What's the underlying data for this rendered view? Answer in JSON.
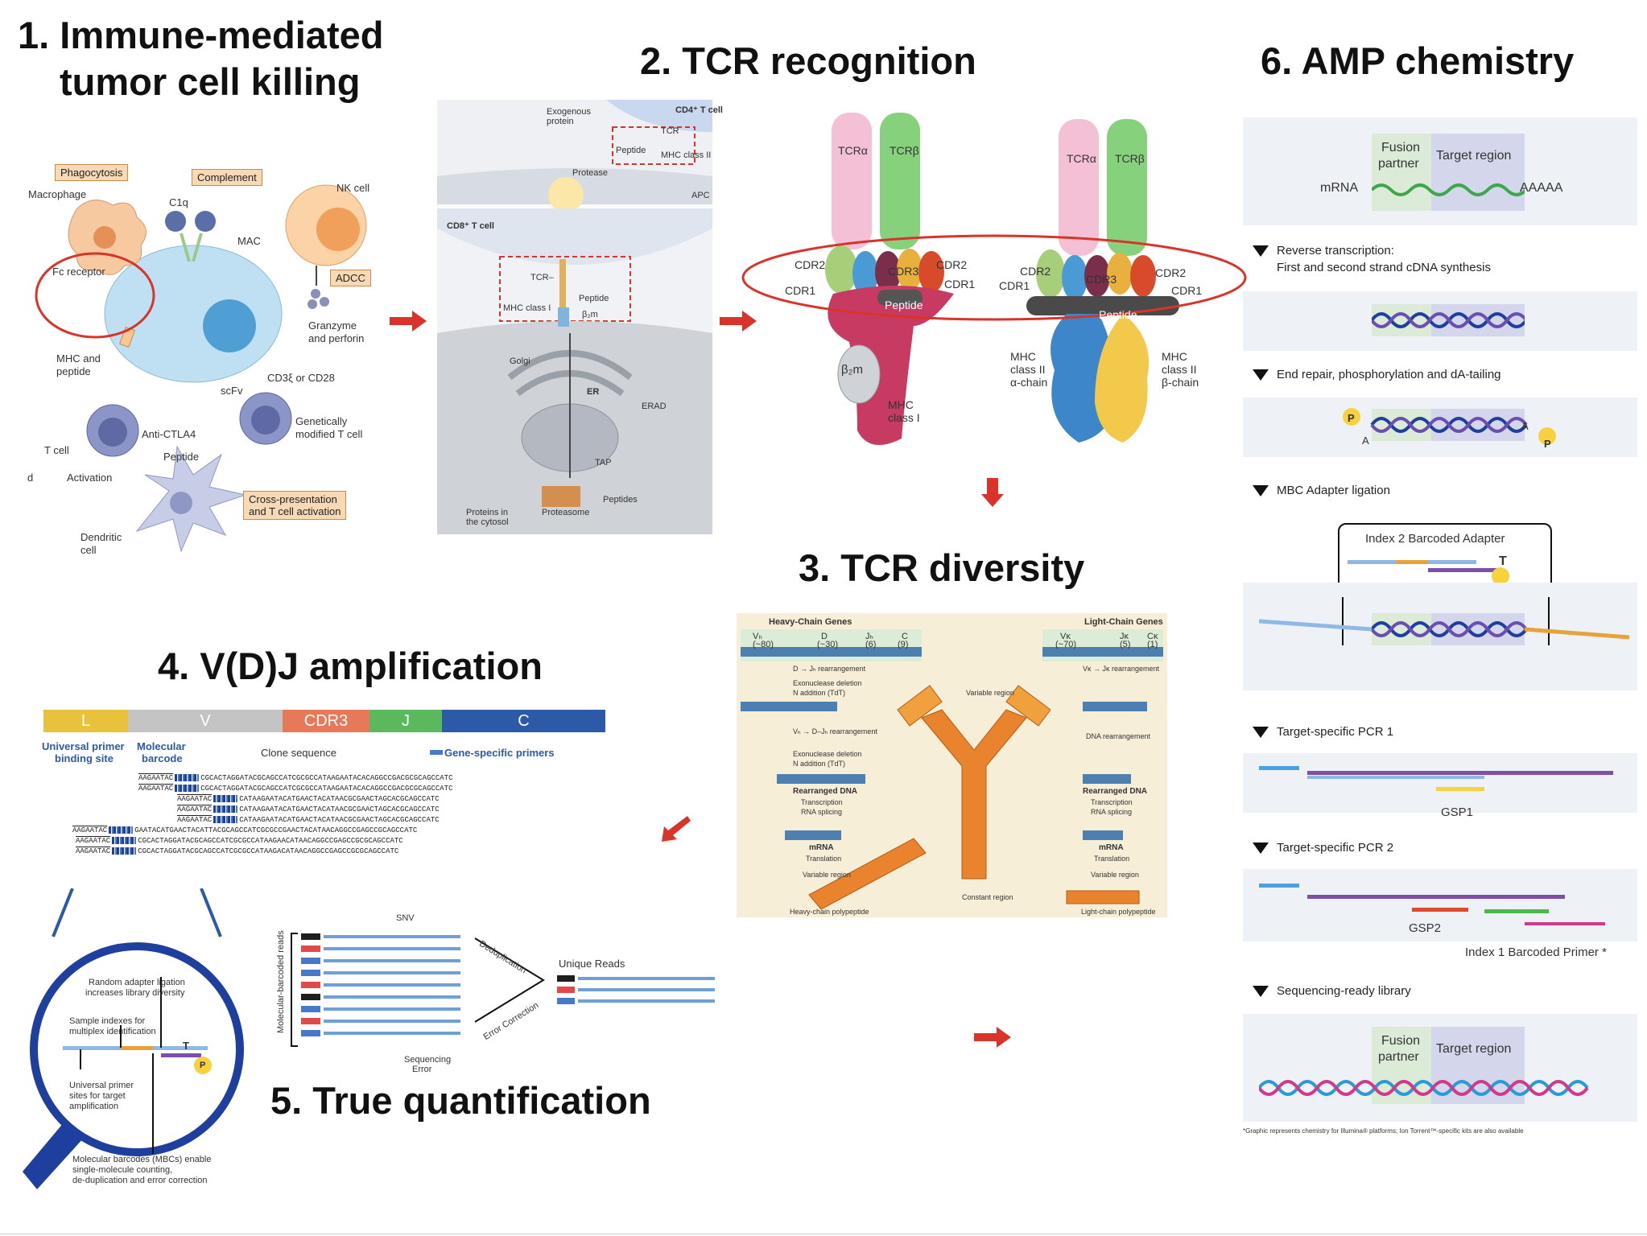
{
  "titles": {
    "t1_line1": "1. Immune-mediated",
    "t1_line2": "tumor cell killing",
    "t2": "2. TCR recognition",
    "t3": "3. TCR diversity",
    "t4": "4. V(D)J amplification",
    "t5": "5. True quantification",
    "t6": "6. AMP chemistry"
  },
  "panel1": {
    "tags": {
      "phagocytosis": "Phagocytosis",
      "complement": "Complement",
      "adcc": "ADCC",
      "cross_line1": "Cross-presentation",
      "cross_line2": "and T cell activation"
    },
    "labels": {
      "macrophage": "Macrophage",
      "c1q": "C1q",
      "nk_cell": "NK cell",
      "mac": "MAC",
      "fc_receptor": "Fc receptor",
      "granzyme_line1": "Granzyme",
      "granzyme_line2": "and perforin",
      "mhc_line1": "MHC and",
      "mhc_line2": "peptide",
      "cd3": "CD3ξ or CD28",
      "scfv": "scFv",
      "gm_line1": "Genetically",
      "gm_line2": "modified T cell",
      "anti_ctla4": "Anti-CTLA4",
      "t_cell": "T cell",
      "peptide": "Peptide",
      "activation": "Activation",
      "dendritic_line1": "Dendritic",
      "dendritic_line2": "cell",
      "d": "d"
    }
  },
  "panel2": {
    "labels": {
      "exogenous_line1": "Exogenous",
      "exogenous_line2": "protein",
      "cd4": "CD4⁺ T cell",
      "tcr": "TCR",
      "peptide": "Peptide",
      "mhc2": "MHC class II",
      "protease": "Protease",
      "apc": "APC",
      "cd8": "CD8⁺ T cell",
      "tcr2": "TCR–",
      "peptide2": "Peptide",
      "mhc1": "MHC class I",
      "b2m": "β₂m",
      "golgi": "Golgi",
      "er": "ER",
      "erad": "ERAD",
      "tap": "TAP",
      "peptides": "Peptides",
      "proteasome": "Proteasome",
      "proteins_line1": "Proteins in",
      "proteins_line2": "the cytosol"
    },
    "tcr": {
      "tcra": "TCRα",
      "tcrb": "TCRβ",
      "cdr1": "CDR1",
      "cdr2": "CDR2",
      "cdr3": "CDR3",
      "peptide": "Peptide",
      "b2m": "β₂m",
      "mhc1_line1": "MHC",
      "mhc1_line2": "class I",
      "mhc2a_line1": "MHC",
      "mhc2a_line2": "class II",
      "mhc2a_line3": "α-chain",
      "mhc2b_line1": "MHC",
      "mhc2b_line2": "class II",
      "mhc2b_line3": "β-chain"
    }
  },
  "panel3": {
    "heavy": "Heavy-Chain Genes",
    "light": "Light-Chain Genes",
    "vh": "Vₕ",
    "vh_n": "(~80)",
    "d": "D",
    "d_n": "(~30)",
    "jh": "Jₕ",
    "jh_n": "(6)",
    "c": "C",
    "c_n": "(9)",
    "vk": "Vκ",
    "vk_n": "(~70)",
    "jk": "Jκ",
    "jk_n": "(5)",
    "ck": "Cκ",
    "ck_n": "(1)",
    "steps_left": [
      "D → Jₕ rearrangement",
      "Exonuclease deletion",
      "N addition (TdT)",
      "Vₕ → D–Jₕ rearrangement",
      "Exonuclease deletion",
      "N addition (TdT)"
    ],
    "rearranged": "Rearranged DNA",
    "transcription": "Transcription",
    "rna_splicing": "RNA splicing",
    "mrna": "mRNA",
    "translation": "Translation",
    "variable_region": "Variable region",
    "constant_region": "Constant region",
    "heavy_poly": "Heavy-chain polypeptide",
    "light_poly": "Light-chain polypeptide",
    "vk_rearr": "Vκ → Jκ rearrangement",
    "dna_rearr": "DNA rearrangement",
    "var_region_top": "Variable region"
  },
  "panel4": {
    "segments": [
      "L",
      "V",
      "CDR3",
      "J",
      "C"
    ],
    "seg_colors": [
      "#e8c23a",
      "#c4c4c4",
      "#e8785a",
      "#5cb85c",
      "#2c5aa8"
    ],
    "universal_line1": "Universal primer",
    "universal_line2": "binding site",
    "molecular_line1": "Molecular",
    "molecular_line2": "barcode",
    "clone_sequence": "Clone sequence",
    "gene_specific": "Gene-specific primers",
    "reads": [
      {
        "prefix": "AAGAATAC",
        "seq": "CGCACTAGGATACGCAGCCATCGCGCCATAAGAATACACAGGCCGACGCGCAGCCATC"
      },
      {
        "prefix": "AAGAATAC",
        "seq": "CGCACTAGGATACGCAGCCATCGCGCCATAAGAATACACAGGCCGACGCGCAGCCATC"
      },
      {
        "prefix": "AAGAATAC",
        "seq": "CATAAGAATACATGAACTACATAACGCGAACTAGCACGCAGCCATC"
      },
      {
        "prefix": "AAGAATAC",
        "seq": "CATAAGAATACATGAACTACATAACGCGAACTAGCACGCAGCCATC"
      },
      {
        "prefix": "AAGAATAC",
        "seq": "CATAAGAATACATGAACTACATAACGCGAACTAGCACGCAGCCATC"
      },
      {
        "prefix": "AAGAATAC",
        "seq": "GAATACATGAACTACATTACGCAGCCATCGCGCCGAACTACATAACAGGCCGAGCCGCAGCCATC"
      },
      {
        "prefix": "AAGAATAC",
        "seq": "CGCACTAGGATACGCAGCCATCGCGCCATAAGAACATAACAGGCCGAGCCGCGCAGCCATC"
      },
      {
        "prefix": "AAGAATAC",
        "seq": "CGCACTAGGATACGCAGCCATCGCGCCATAAGACATAACAGGCCGAGCCGCGCAGCCATC"
      }
    ],
    "magnifier": {
      "random_line1": "Random adapter ligation",
      "random_line2": "increases library diversity",
      "sample_line1": "Sample indexes for",
      "sample_line2": "multiplex identification",
      "universal_line1": "Universal primer",
      "universal_line2": "sites for target",
      "universal_line3": "amplification",
      "mbc_line1": "Molecular barcodes (MBCs) enable",
      "mbc_line2": "single-molecule counting,",
      "mbc_line3": "de-duplication and error correction",
      "t": "T",
      "p": "P"
    }
  },
  "panel5": {
    "y_label": "Molecular-barcoded reads",
    "snv": "SNV",
    "dedup": "Deduplication",
    "error_corr": "Error Correction",
    "unique_reads": "Unique Reads",
    "seq_error_line1": "Sequencing",
    "seq_error_line2": "Error"
  },
  "panel6": {
    "fusion_line1": "Fusion",
    "fusion_line2": "partner",
    "target_region": "Target region",
    "mrna": "mRNA",
    "aaaaa": "AAAAA",
    "steps": [
      {
        "line1": "Reverse transcription:",
        "line2": "First and second strand cDNA synthesis"
      },
      {
        "line1": "End repair, phosphorylation and dA-tailing",
        "line2": ""
      },
      {
        "line1": "MBC Adapter ligation",
        "line2": ""
      },
      {
        "line1": "Target-specific PCR 1",
        "line2": ""
      },
      {
        "line1": "Target-specific PCR 2",
        "line2": ""
      },
      {
        "line1": "Sequencing-ready library",
        "line2": ""
      }
    ],
    "p": "P",
    "a": "A",
    "t": "T",
    "index2": "Index 2 Barcoded Adapter",
    "gsp1": "GSP1",
    "gsp2": "GSP2",
    "index1": "Index 1 Barcoded Primer *",
    "footnote": "*Graphic represents chemistry for Illumina® platforms; Ion Torrent™-specific kits are also available"
  }
}
